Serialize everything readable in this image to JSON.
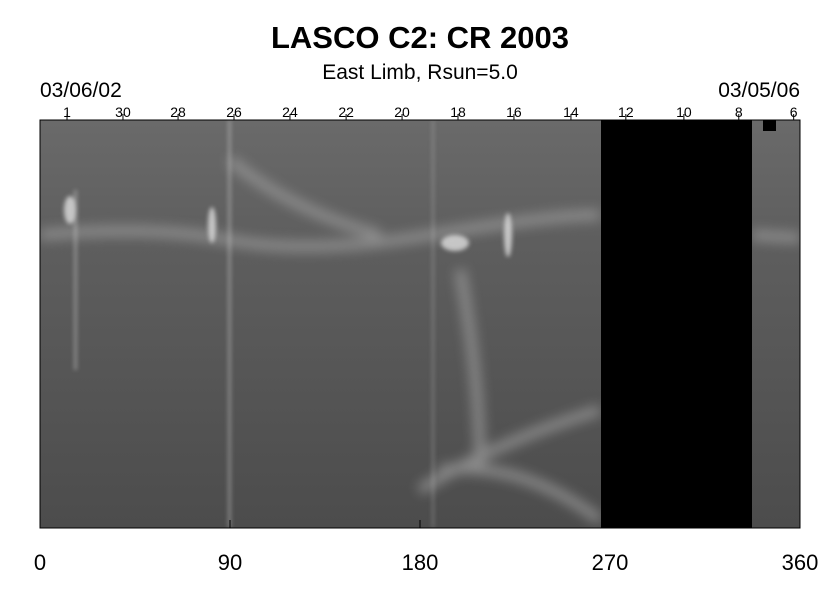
{
  "chart_data": {
    "type": "image",
    "title": "LASCO C2: CR 2003",
    "subtitle": "East Limb, Rsun=5.0",
    "start_date": "03/06/02",
    "end_date": "03/05/06",
    "xlim": [
      0,
      360
    ],
    "xticks": [
      0,
      90,
      180,
      270,
      360
    ],
    "x2ticks": [
      {
        "value": 12.8,
        "label": "1"
      },
      {
        "value": 39.3,
        "label": "30"
      },
      {
        "value": 65.4,
        "label": "28"
      },
      {
        "value": 91.9,
        "label": "26"
      },
      {
        "value": 118.4,
        "label": "24"
      },
      {
        "value": 145,
        "label": "22"
      },
      {
        "value": 171.5,
        "label": "20"
      },
      {
        "value": 198,
        "label": "18"
      },
      {
        "value": 224.5,
        "label": "16"
      },
      {
        "value": 251.5,
        "label": "14"
      },
      {
        "value": 277.5,
        "label": "12"
      },
      {
        "value": 305,
        "label": "10"
      },
      {
        "value": 331,
        "label": "8"
      },
      {
        "value": 357,
        "label": "6"
      }
    ]
  }
}
